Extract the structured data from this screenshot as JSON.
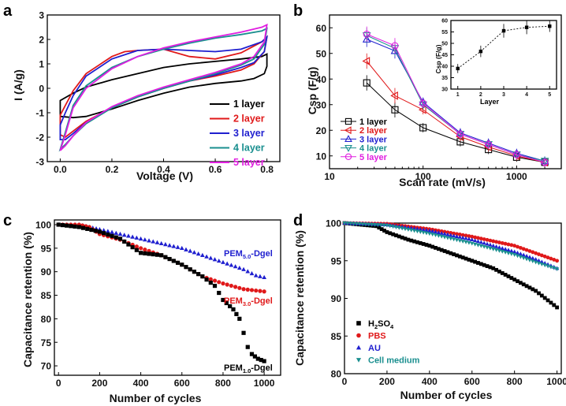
{
  "chart_data": [
    {
      "panel": "a",
      "type": "line",
      "title": "",
      "xlabel": "Voltage (V)",
      "ylabel": "I (A/g)",
      "xlim": [
        -0.05,
        0.85
      ],
      "ylim": [
        -3,
        3
      ],
      "xticks": [
        0.0,
        0.2,
        0.4,
        0.6,
        0.8
      ],
      "yticks": [
        -3,
        -2,
        -1,
        0,
        1,
        2,
        3
      ],
      "legend_position": "bottom-right",
      "series": [
        {
          "name": "1 layer",
          "color": "#000000",
          "upper": [
            [
              0.0,
              -0.5
            ],
            [
              0.05,
              -0.2
            ],
            [
              0.1,
              0.05
            ],
            [
              0.2,
              0.35
            ],
            [
              0.3,
              0.6
            ],
            [
              0.4,
              0.85
            ],
            [
              0.5,
              1.0
            ],
            [
              0.6,
              1.1
            ],
            [
              0.7,
              1.2
            ],
            [
              0.78,
              1.3
            ],
            [
              0.8,
              1.4
            ]
          ],
          "lower": [
            [
              0.8,
              1.4
            ],
            [
              0.8,
              0.9
            ],
            [
              0.79,
              0.6
            ],
            [
              0.75,
              0.4
            ],
            [
              0.7,
              0.3
            ],
            [
              0.6,
              0.2
            ],
            [
              0.5,
              0.05
            ],
            [
              0.4,
              -0.2
            ],
            [
              0.3,
              -0.5
            ],
            [
              0.2,
              -0.85
            ],
            [
              0.1,
              -1.15
            ],
            [
              0.05,
              -1.2
            ],
            [
              0.0,
              -1.15
            ]
          ]
        },
        {
          "name": "2 layer",
          "color": "#e0191a",
          "upper": [
            [
              0.0,
              -1.1
            ],
            [
              0.02,
              -0.7
            ],
            [
              0.05,
              -0.1
            ],
            [
              0.1,
              0.6
            ],
            [
              0.2,
              1.3
            ],
            [
              0.25,
              1.5
            ],
            [
              0.3,
              1.55
            ],
            [
              0.4,
              1.6
            ],
            [
              0.5,
              1.3
            ],
            [
              0.6,
              1.2
            ],
            [
              0.7,
              1.45
            ],
            [
              0.78,
              1.9
            ],
            [
              0.8,
              2.1
            ]
          ],
          "lower": [
            [
              0.8,
              2.1
            ],
            [
              0.79,
              1.5
            ],
            [
              0.75,
              1.0
            ],
            [
              0.7,
              0.75
            ],
            [
              0.6,
              0.5
            ],
            [
              0.5,
              0.3
            ],
            [
              0.4,
              0.0
            ],
            [
              0.3,
              -0.35
            ],
            [
              0.2,
              -0.8
            ],
            [
              0.1,
              -1.35
            ],
            [
              0.05,
              -1.75
            ],
            [
              0.02,
              -2.0
            ],
            [
              0.0,
              -1.9
            ]
          ]
        },
        {
          "name": "3 layer",
          "color": "#1f1fcf",
          "upper": [
            [
              0.0,
              -1.5
            ],
            [
              0.02,
              -1.0
            ],
            [
              0.05,
              -0.3
            ],
            [
              0.1,
              0.5
            ],
            [
              0.2,
              1.2
            ],
            [
              0.3,
              1.55
            ],
            [
              0.4,
              1.6
            ],
            [
              0.5,
              1.55
            ],
            [
              0.6,
              1.5
            ],
            [
              0.7,
              1.6
            ],
            [
              0.78,
              1.9
            ],
            [
              0.8,
              2.1
            ]
          ],
          "lower": [
            [
              0.8,
              2.1
            ],
            [
              0.79,
              1.5
            ],
            [
              0.75,
              1.05
            ],
            [
              0.7,
              0.85
            ],
            [
              0.6,
              0.55
            ],
            [
              0.5,
              0.3
            ],
            [
              0.4,
              0.0
            ],
            [
              0.3,
              -0.35
            ],
            [
              0.2,
              -0.8
            ],
            [
              0.1,
              -1.4
            ],
            [
              0.05,
              -1.85
            ],
            [
              0.02,
              -2.1
            ],
            [
              0.0,
              -2.1
            ]
          ]
        },
        {
          "name": "4 layer",
          "color": "#1a8f8f",
          "upper": [
            [
              0.0,
              -2.5
            ],
            [
              0.02,
              -1.8
            ],
            [
              0.05,
              -0.7
            ],
            [
              0.1,
              0.1
            ],
            [
              0.2,
              0.85
            ],
            [
              0.3,
              1.3
            ],
            [
              0.4,
              1.6
            ],
            [
              0.5,
              1.85
            ],
            [
              0.6,
              2.05
            ],
            [
              0.7,
              2.2
            ],
            [
              0.78,
              2.35
            ],
            [
              0.8,
              2.45
            ]
          ],
          "lower": [
            [
              0.8,
              2.45
            ],
            [
              0.79,
              1.8
            ],
            [
              0.75,
              1.2
            ],
            [
              0.7,
              0.95
            ],
            [
              0.6,
              0.6
            ],
            [
              0.5,
              0.3
            ],
            [
              0.4,
              0.0
            ],
            [
              0.3,
              -0.35
            ],
            [
              0.2,
              -0.8
            ],
            [
              0.1,
              -1.45
            ],
            [
              0.05,
              -1.95
            ],
            [
              0.02,
              -2.3
            ],
            [
              0.0,
              -2.5
            ]
          ]
        },
        {
          "name": "5 layer",
          "color": "#e01ee0",
          "upper": [
            [
              0.0,
              -2.55
            ],
            [
              0.02,
              -1.9
            ],
            [
              0.05,
              -0.8
            ],
            [
              0.1,
              0.0
            ],
            [
              0.2,
              0.8
            ],
            [
              0.3,
              1.3
            ],
            [
              0.4,
              1.65
            ],
            [
              0.5,
              1.9
            ],
            [
              0.6,
              2.1
            ],
            [
              0.7,
              2.3
            ],
            [
              0.78,
              2.5
            ],
            [
              0.8,
              2.6
            ]
          ],
          "lower": [
            [
              0.8,
              2.6
            ],
            [
              0.79,
              1.9
            ],
            [
              0.75,
              1.3
            ],
            [
              0.7,
              1.0
            ],
            [
              0.6,
              0.65
            ],
            [
              0.5,
              0.35
            ],
            [
              0.4,
              0.05
            ],
            [
              0.3,
              -0.3
            ],
            [
              0.2,
              -0.75
            ],
            [
              0.1,
              -1.4
            ],
            [
              0.05,
              -1.95
            ],
            [
              0.02,
              -2.35
            ],
            [
              0.0,
              -2.55
            ]
          ]
        }
      ]
    },
    {
      "panel": "b",
      "type": "line",
      "title": "",
      "xlabel": "Scan rate (mV/s)",
      "ylabel": "Csp (F/g)",
      "xscale": "log",
      "xlim": [
        10,
        3000
      ],
      "ylim": [
        5,
        65
      ],
      "xticks": [
        10,
        100,
        1000
      ],
      "xticklabels": [
        "10",
        "100",
        "1000"
      ],
      "yticks": [
        10,
        20,
        30,
        40,
        50,
        60
      ],
      "legend_position": "bottom-left",
      "x": [
        25,
        50,
        100,
        250,
        500,
        1000,
        2000
      ],
      "series": [
        {
          "name": "1 layer",
          "color": "#000000",
          "marker": "square",
          "values": [
            38.5,
            28,
            21,
            15.5,
            12.5,
            9.5,
            7.5
          ]
        },
        {
          "name": "2 layer",
          "color": "#e0191a",
          "marker": "triangle-left",
          "values": [
            47,
            33.5,
            28,
            17.5,
            13.5,
            10,
            7.5
          ]
        },
        {
          "name": "3 layer",
          "color": "#1f1fcf",
          "marker": "triangle-up",
          "values": [
            55.5,
            51,
            31,
            19,
            15,
            11,
            8
          ]
        },
        {
          "name": "4 layer",
          "color": "#1a8f8f",
          "marker": "triangle-down",
          "values": [
            57,
            52,
            30,
            18.5,
            14.5,
            10.5,
            8
          ]
        },
        {
          "name": "5 layer",
          "color": "#e01ee0",
          "marker": "circle",
          "values": [
            57.5,
            53,
            30.5,
            18.5,
            14.5,
            10.5,
            7.5
          ]
        }
      ],
      "inset": {
        "type": "line",
        "xlabel": "Layer",
        "ylabel": "Csp (F/g)",
        "xlim": [
          0.7,
          5.3
        ],
        "ylim": [
          30,
          60
        ],
        "xticks": [
          1,
          2,
          3,
          4,
          5
        ],
        "yticks": [
          30,
          35,
          40,
          45,
          50,
          55,
          60
        ],
        "x": [
          1,
          2,
          3,
          4,
          5
        ],
        "values": [
          39,
          46.5,
          55.5,
          57,
          57.5
        ],
        "errors": [
          2,
          2.5,
          3,
          3,
          2.5
        ]
      }
    },
    {
      "panel": "c",
      "type": "scatter",
      "title": "",
      "xlabel": "Number of cycles",
      "ylabel": "Capacitance retention (%)",
      "xlim": [
        -20,
        1080
      ],
      "ylim": [
        68,
        101
      ],
      "xticks": [
        0,
        200,
        400,
        600,
        800,
        1000
      ],
      "yticks": [
        70,
        75,
        80,
        85,
        90,
        95,
        100
      ],
      "series": [
        {
          "name": "PEM5.0-Dgel",
          "label_main": "PEM",
          "label_sub": "5.0",
          "label_tail": "-Dgel",
          "color": "#1f1fcf",
          "marker": "triangle-up",
          "points": [
            [
              0,
              100
            ],
            [
              100,
              100
            ],
            [
              150,
              99.5
            ],
            [
              200,
              99
            ],
            [
              300,
              98
            ],
            [
              400,
              97
            ],
            [
              500,
              96
            ],
            [
              600,
              95
            ],
            [
              700,
              93.5
            ],
            [
              800,
              92
            ],
            [
              900,
              90.5
            ],
            [
              960,
              89.2
            ],
            [
              1000,
              88.8
            ]
          ]
        },
        {
          "name": "PEM3.0-Dgel",
          "label_main": "PEM",
          "label_sub": "3.0",
          "label_tail": "-Dgel",
          "color": "#e0191a",
          "marker": "circle",
          "points": [
            [
              0,
              100
            ],
            [
              100,
              100
            ],
            [
              150,
              99.5
            ],
            [
              200,
              98
            ],
            [
              300,
              96.8
            ],
            [
              400,
              95
            ],
            [
              500,
              93.5
            ],
            [
              600,
              91.5
            ],
            [
              700,
              89
            ],
            [
              800,
              87.5
            ],
            [
              900,
              86.3
            ],
            [
              1000,
              85.8
            ]
          ]
        },
        {
          "name": "PEM1.0-Dgel",
          "label_main": "PEM",
          "label_sub": "1.0",
          "label_tail": "-Dgel",
          "color": "#000000",
          "marker": "square",
          "points": [
            [
              0,
              100
            ],
            [
              100,
              99.5
            ],
            [
              200,
              98.5
            ],
            [
              300,
              97
            ],
            [
              400,
              94
            ],
            [
              500,
              93.5
            ],
            [
              600,
              91.5
            ],
            [
              700,
              89
            ],
            [
              760,
              87
            ],
            [
              800,
              84
            ],
            [
              850,
              82
            ],
            [
              880,
              80
            ],
            [
              900,
              77
            ],
            [
              920,
              74
            ],
            [
              940,
              72.5
            ],
            [
              970,
              71.5
            ],
            [
              1000,
              71
            ]
          ]
        }
      ]
    },
    {
      "panel": "d",
      "type": "scatter",
      "title": "",
      "xlabel": "Number of cycles",
      "ylabel": "Capacitance retention (%)",
      "xlim": [
        0,
        1020
      ],
      "ylim": [
        80,
        100
      ],
      "xticks": [
        0,
        200,
        400,
        600,
        800,
        1000
      ],
      "yticks": [
        80,
        85,
        90,
        95,
        100
      ],
      "legend_position": "bottom-left",
      "series": [
        {
          "name": "H2SO4",
          "label_main": "H",
          "label_sub1": "2",
          "label_mid": "SO",
          "label_sub2": "4",
          "color": "#000000",
          "marker": "square",
          "points": [
            [
              0,
              100
            ],
            [
              150,
              99.6
            ],
            [
              200,
              98.8
            ],
            [
              300,
              97.8
            ],
            [
              400,
              97
            ],
            [
              500,
              96
            ],
            [
              600,
              95
            ],
            [
              700,
              94
            ],
            [
              800,
              92.5
            ],
            [
              900,
              91
            ],
            [
              1000,
              88.8
            ]
          ]
        },
        {
          "name": "PBS",
          "color": "#e0191a",
          "marker": "circle",
          "points": [
            [
              0,
              100
            ],
            [
              200,
              99.9
            ],
            [
              400,
              99.2
            ],
            [
              600,
              98.2
            ],
            [
              800,
              97
            ],
            [
              900,
              96
            ],
            [
              1000,
              95
            ]
          ]
        },
        {
          "name": "AU",
          "color": "#1f1fcf",
          "marker": "triangle-up",
          "points": [
            [
              0,
              100
            ],
            [
              200,
              99.8
            ],
            [
              400,
              99
            ],
            [
              600,
              97.8
            ],
            [
              800,
              96.2
            ],
            [
              900,
              95.2
            ],
            [
              1000,
              94
            ]
          ]
        },
        {
          "name": "Cell medium",
          "color": "#1a8f8f",
          "marker": "triangle-down",
          "points": [
            [
              0,
              100
            ],
            [
              200,
              99.7
            ],
            [
              400,
              98.6
            ],
            [
              600,
              97.3
            ],
            [
              800,
              95.8
            ],
            [
              900,
              94.8
            ],
            [
              1000,
              93.9
            ]
          ]
        }
      ]
    }
  ],
  "panel_labels": [
    "a",
    "b",
    "c",
    "d"
  ]
}
